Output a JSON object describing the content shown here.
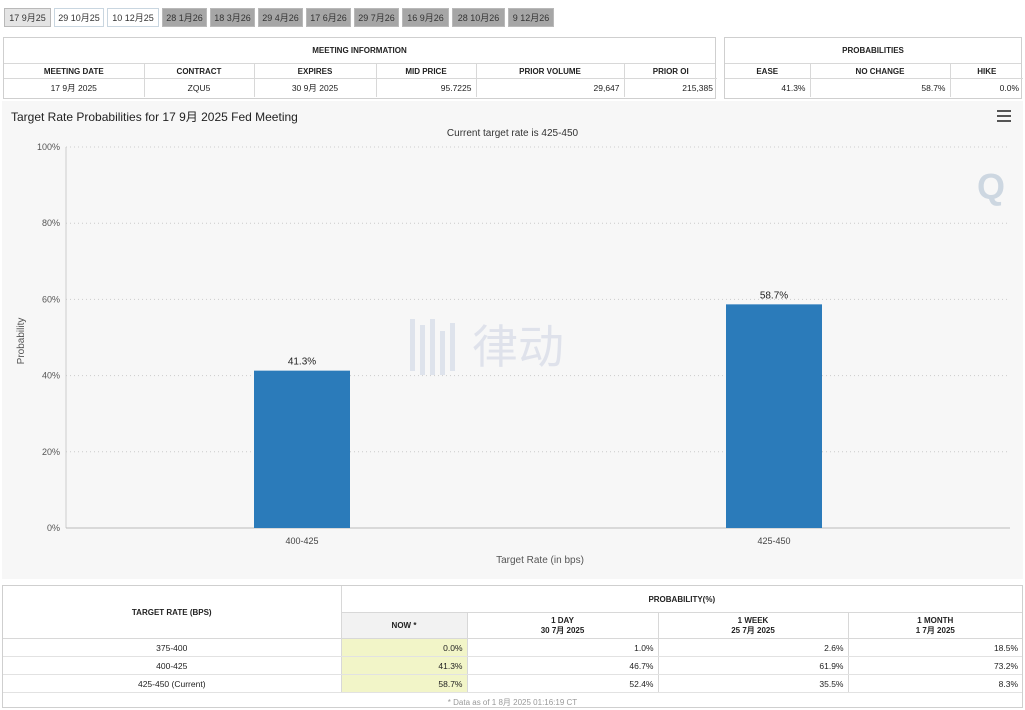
{
  "tabs": [
    {
      "label": "17 9月25",
      "state": "active"
    },
    {
      "label": "29 10月25",
      "state": "light"
    },
    {
      "label": "10 12月25",
      "state": "light"
    },
    {
      "label": "28 1月26",
      "state": "dark"
    },
    {
      "label": "18 3月26",
      "state": "dark"
    },
    {
      "label": "29 4月26",
      "state": "dark"
    },
    {
      "label": "17 6月26",
      "state": "dark"
    },
    {
      "label": "29 7月26",
      "state": "dark"
    },
    {
      "label": "16 9月26",
      "state": "dark"
    },
    {
      "label": "28 10月26",
      "state": "dark"
    },
    {
      "label": "9 12月26",
      "state": "dark"
    }
  ],
  "meeting_info": {
    "title": "MEETING INFORMATION",
    "headers": [
      "MEETING DATE",
      "CONTRACT",
      "EXPIRES",
      "MID PRICE",
      "PRIOR VOLUME",
      "PRIOR OI"
    ],
    "row": [
      "17 9月 2025",
      "ZQU5",
      "30 9月 2025",
      "95.7225",
      "29,647",
      "215,385"
    ]
  },
  "probabilities": {
    "title": "PROBABILITIES",
    "headers": [
      "EASE",
      "NO CHANGE",
      "HIKE"
    ],
    "row": [
      "41.3%",
      "58.7%",
      "0.0%"
    ]
  },
  "chart": {
    "title": "Target Rate Probabilities for 17 9月 2025 Fed Meeting",
    "subtitle": "Current target rate is 425-450",
    "menu_icon": "hamburger-menu-icon",
    "watermark_text": "律动",
    "bar_color": "#2b7bba"
  },
  "chart_data": {
    "type": "bar",
    "categories": [
      "400-425",
      "425-450"
    ],
    "values": [
      41.3,
      58.7
    ],
    "data_labels": [
      "41.3%",
      "58.7%"
    ],
    "title": "Target Rate Probabilities for 17 9月 2025 Fed Meeting",
    "subtitle": "Current target rate is 425-450",
    "xlabel": "Target Rate (in bps)",
    "ylabel": "Probability",
    "ylim": [
      0,
      100
    ],
    "yticks": [
      "0%",
      "20%",
      "40%",
      "60%",
      "80%",
      "100%"
    ],
    "grid": true,
    "legend": "none"
  },
  "prob_table": {
    "col1_header": "TARGET RATE (BPS)",
    "group_header": "PROBABILITY(%)",
    "now_header": "NOW *",
    "day_header": "1 DAY",
    "day_date": "30 7月 2025",
    "week_header": "1 WEEK",
    "week_date": "25 7月 2025",
    "month_header": "1 MONTH",
    "month_date": "1 7月 2025",
    "rows": [
      [
        "375-400",
        "0.0%",
        "1.0%",
        "2.6%",
        "18.5%"
      ],
      [
        "400-425",
        "41.3%",
        "46.7%",
        "61.9%",
        "73.2%"
      ],
      [
        "425-450 (Current)",
        "58.7%",
        "52.4%",
        "35.5%",
        "8.3%"
      ]
    ],
    "footnote": "* Data as of 1 8月 2025 01:16:19 CT"
  }
}
